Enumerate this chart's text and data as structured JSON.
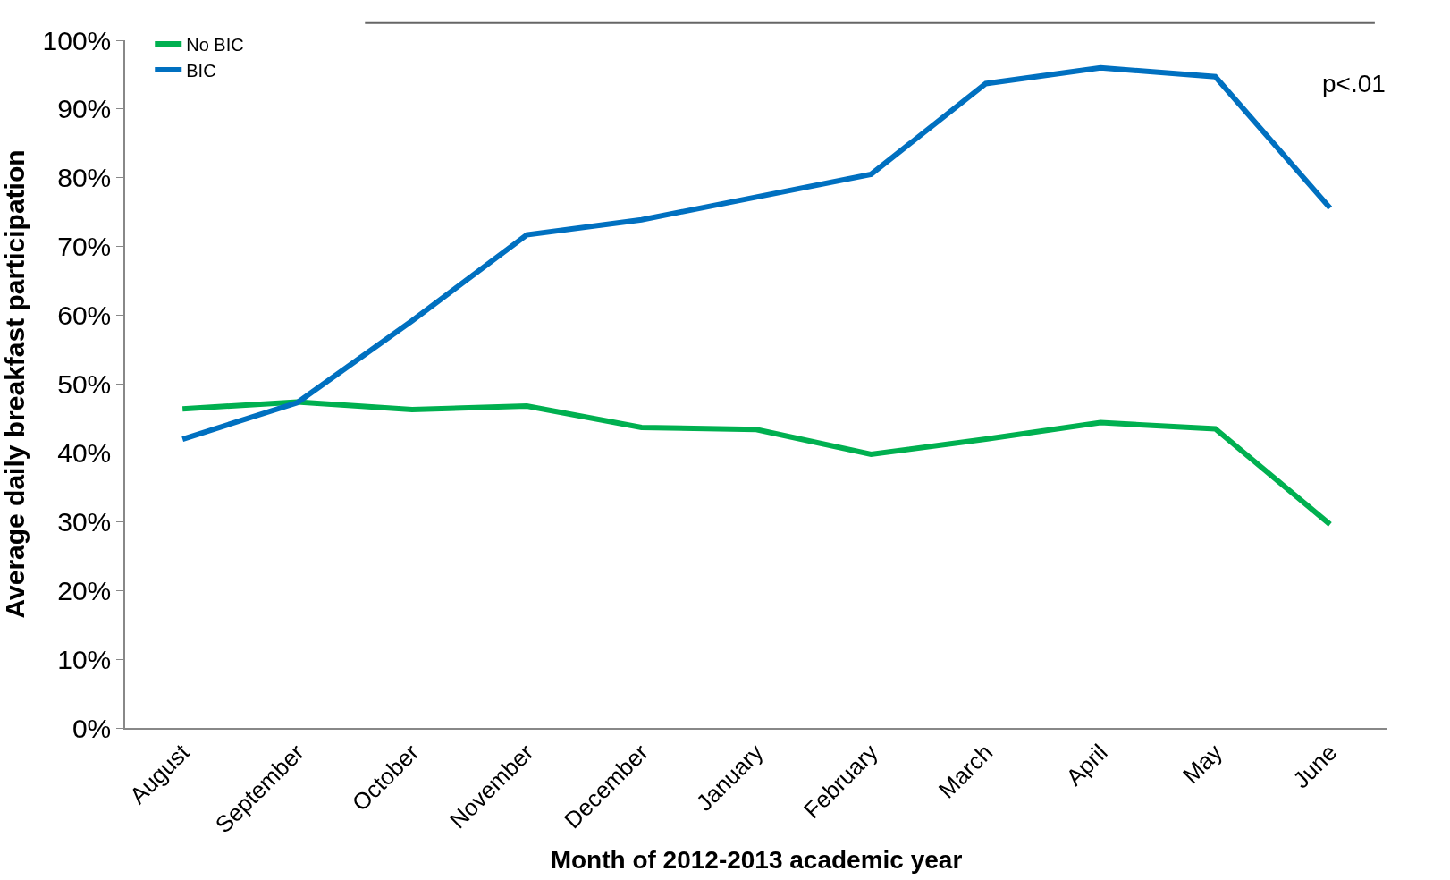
{
  "chart_data": {
    "type": "line",
    "xlabel": "Month of 2012-2013 academic year",
    "ylabel": "Average daily breakfast participation",
    "categories": [
      "August",
      "September",
      "October",
      "November",
      "December",
      "January",
      "February",
      "March",
      "April",
      "May",
      "June"
    ],
    "series": [
      {
        "name": "No BIC",
        "color": "#00b050",
        "values": [
          46.4,
          47.4,
          46.3,
          46.8,
          43.7,
          43.4,
          39.8,
          42.0,
          44.4,
          43.5,
          29.6
        ]
      },
      {
        "name": "BIC",
        "color": "#0070c0",
        "values": [
          42.0,
          47.3,
          59.2,
          71.7,
          73.9,
          77.2,
          80.5,
          93.7,
          96.0,
          94.7,
          75.6
        ]
      }
    ],
    "ylim": [
      0,
      100
    ],
    "yticks": [
      {
        "value": 0,
        "label": "0%"
      },
      {
        "value": 10,
        "label": "10%"
      },
      {
        "value": 20,
        "label": "20%"
      },
      {
        "value": 30,
        "label": "30%"
      },
      {
        "value": 40,
        "label": "40%"
      },
      {
        "value": 50,
        "label": "50%"
      },
      {
        "value": 60,
        "label": "60%"
      },
      {
        "value": 70,
        "label": "70%"
      },
      {
        "value": 80,
        "label": "80%"
      },
      {
        "value": 90,
        "label": "90%"
      },
      {
        "value": 100,
        "label": "100%"
      }
    ],
    "annotations": [
      "p<.01"
    ],
    "legend": "top left",
    "marker": "none",
    "line_style": "solid"
  }
}
